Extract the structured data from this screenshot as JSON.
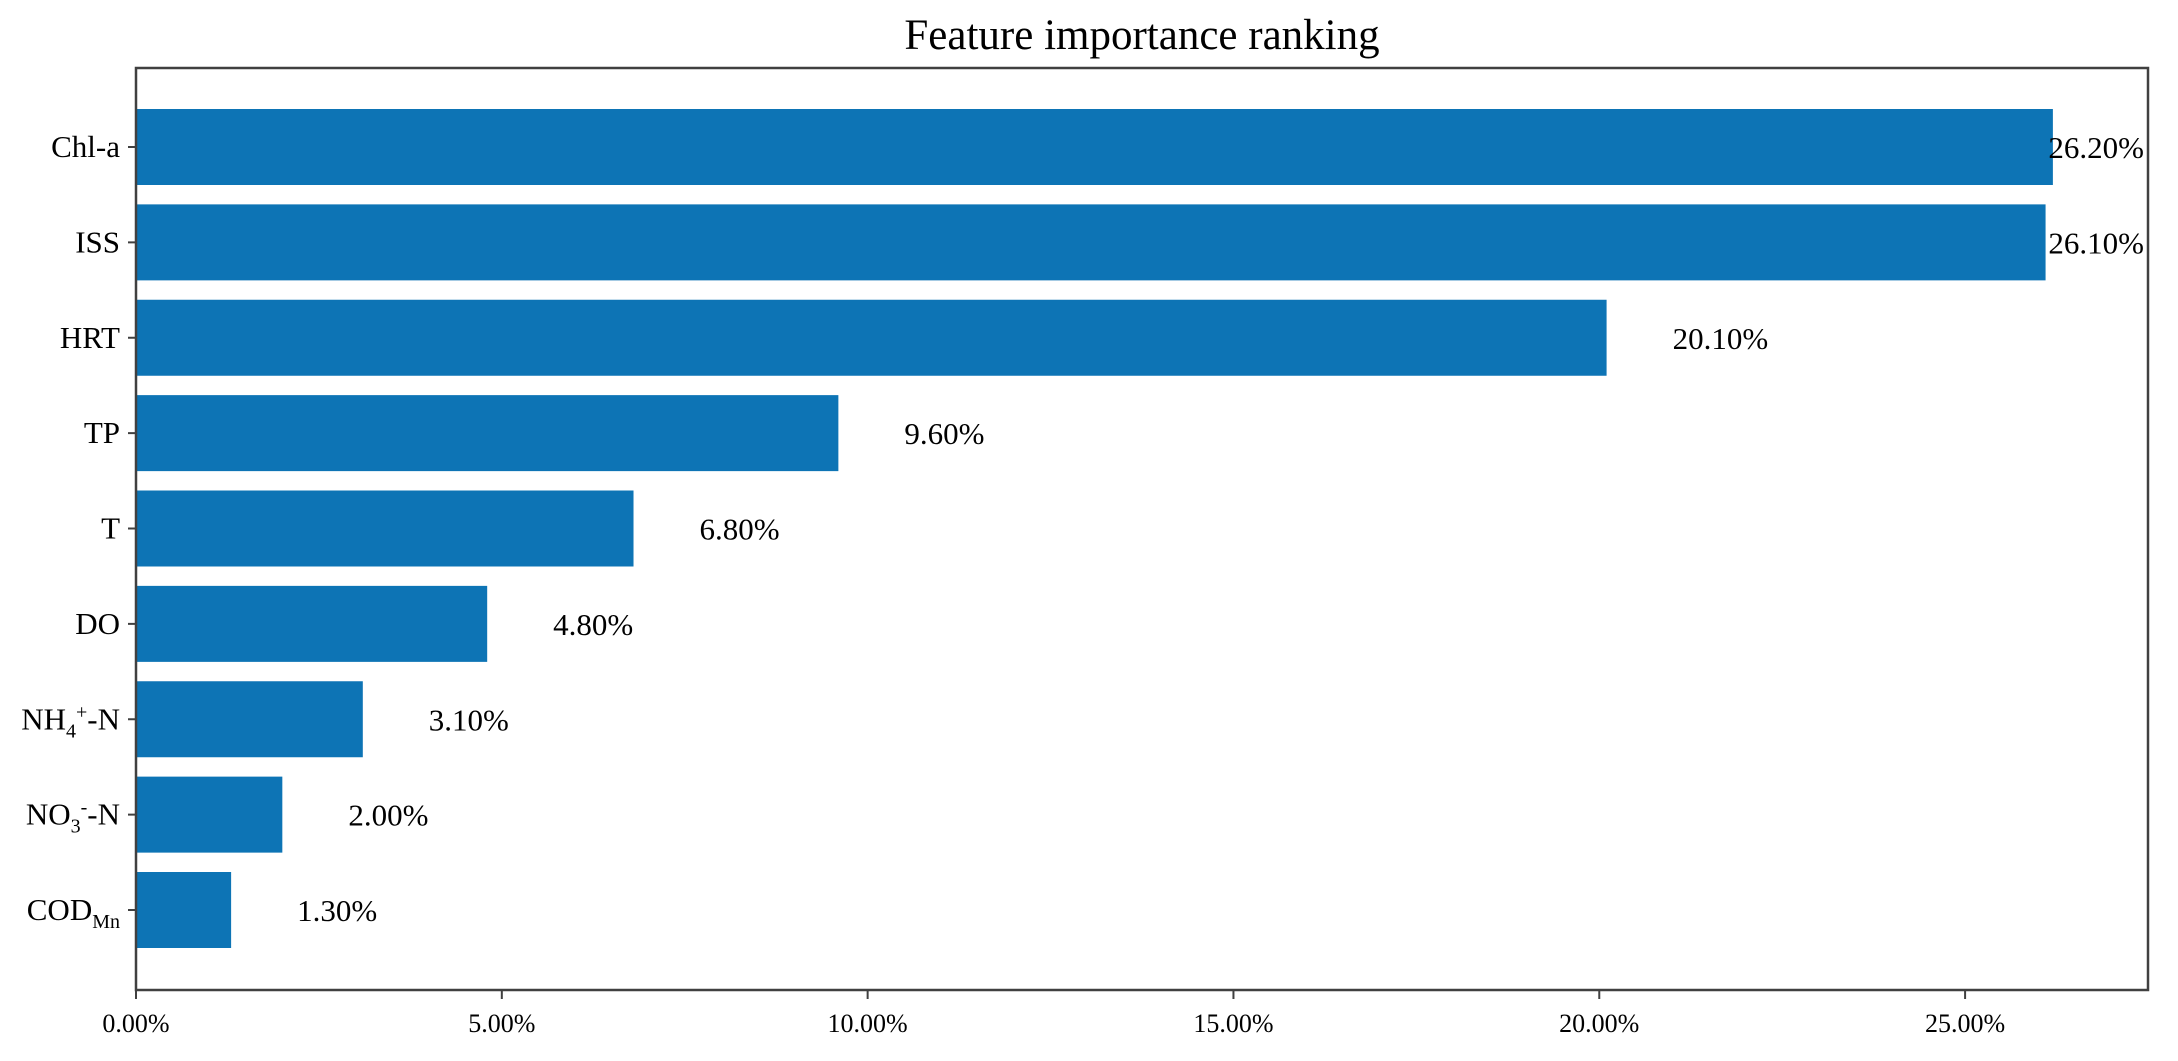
{
  "figure": {
    "background": "#ffffff"
  },
  "chart_data": {
    "type": "bar",
    "orientation": "horizontal",
    "title": "Feature importance ranking",
    "categories": [
      "Chl-a",
      "ISS",
      "HRT",
      "TP",
      "T",
      "DO",
      "NH4+-N",
      "NO3--N",
      "CODMn"
    ],
    "category_rich": [
      [
        {
          "t": "Chl-a"
        }
      ],
      [
        {
          "t": "ISS"
        }
      ],
      [
        {
          "t": "HRT"
        }
      ],
      [
        {
          "t": "TP"
        }
      ],
      [
        {
          "t": "T"
        }
      ],
      [
        {
          "t": "DO"
        }
      ],
      [
        {
          "t": "NH"
        },
        {
          "t": "4",
          "s": "sub"
        },
        {
          "t": "+",
          "s": "sup"
        },
        {
          "t": "-N"
        }
      ],
      [
        {
          "t": "NO"
        },
        {
          "t": "3",
          "s": "sub"
        },
        {
          "t": "-",
          "s": "sup"
        },
        {
          "t": "-N"
        }
      ],
      [
        {
          "t": "COD"
        },
        {
          "t": "Mn",
          "s": "sub"
        }
      ]
    ],
    "values": [
      26.2,
      26.1,
      20.1,
      9.6,
      6.8,
      4.8,
      3.1,
      2.0,
      1.3
    ],
    "value_labels": [
      "26.20%",
      "26.10%",
      "20.10%",
      "9.60%",
      "6.80%",
      "4.80%",
      "3.10%",
      "2.00%",
      "1.30%"
    ],
    "x_ticks": [
      {
        "value": 0,
        "label": "0.00%"
      },
      {
        "value": 5,
        "label": "5.00%"
      },
      {
        "value": 10,
        "label": "10.00%"
      },
      {
        "value": 15,
        "label": "15.00%"
      },
      {
        "value": 20,
        "label": "20.00%"
      },
      {
        "value": 25,
        "label": "25.00%"
      }
    ],
    "xlim": [
      0,
      27.5
    ],
    "ylabel": "",
    "xlabel": "",
    "grid": false,
    "legend": null,
    "bar_color": "#0d74b5",
    "axis_color": "#404040",
    "text_color": "#000000"
  }
}
